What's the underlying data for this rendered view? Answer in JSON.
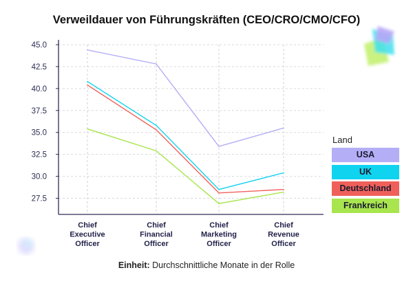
{
  "chart_data": {
    "type": "line",
    "title": "Verweildauer von Führungskräften (CEO/CRO/CMO/CFO)",
    "categories": [
      [
        "Chief",
        "Executive",
        "Officer"
      ],
      [
        "Chief",
        "Financial",
        "Officer"
      ],
      [
        "Chief",
        "Marketing",
        "Officer"
      ],
      [
        "Chief",
        "Revenue",
        "Officer"
      ]
    ],
    "ylim": [
      26.0,
      45.0
    ],
    "yticks": [
      "45.0",
      "42.5",
      "40.0",
      "37.5",
      "35.0",
      "32.5",
      "30.0",
      "27.5"
    ],
    "ytick_values": [
      45.0,
      42.5,
      40.0,
      37.5,
      35.0,
      32.5,
      30.0,
      27.5
    ],
    "legend_title": "Land",
    "series": [
      {
        "name": "USA",
        "color": "#b3aef5",
        "values": [
          44.4,
          42.8,
          33.4,
          35.5
        ]
      },
      {
        "name": "UK",
        "color": "#10d3f0",
        "values": [
          40.8,
          35.8,
          28.5,
          30.4
        ]
      },
      {
        "name": "Deutschland",
        "color": "#f0605a",
        "values": [
          40.4,
          35.3,
          28.1,
          28.5
        ]
      },
      {
        "name": "Frankreich",
        "color": "#a8e54e",
        "values": [
          35.4,
          32.9,
          26.9,
          28.2
        ]
      }
    ]
  },
  "footer": {
    "label": "Einheit:",
    "text": "Durchschnittliche Monate in der Rolle"
  }
}
